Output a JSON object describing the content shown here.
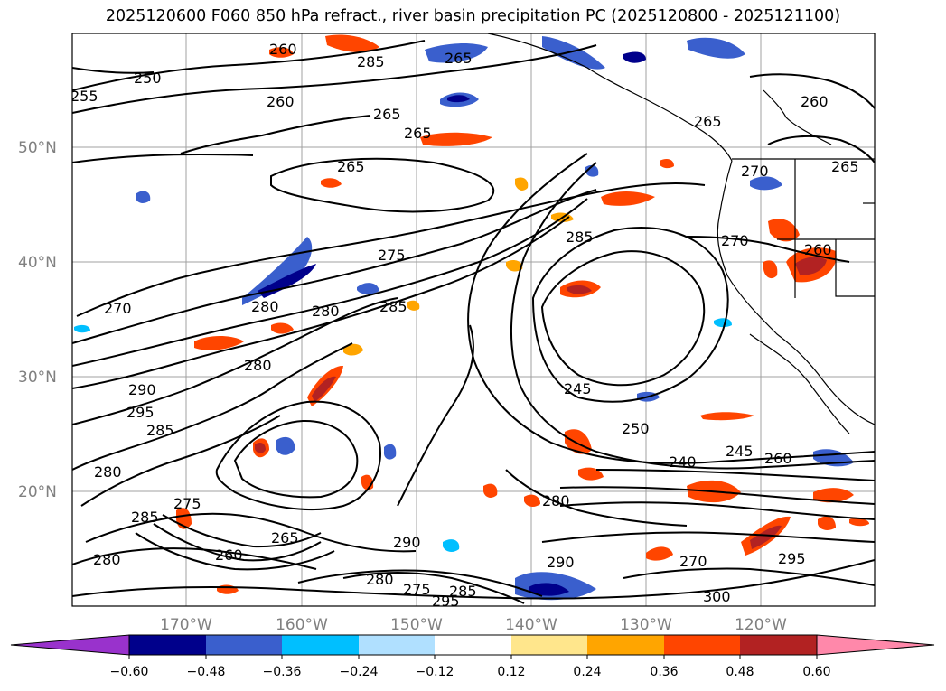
{
  "title": "2025120600 F060 850 hPa refract., river basin precipitation PC (2025120800 - 2025121100)",
  "map": {
    "lat_labels": [
      "50°N",
      "40°N",
      "30°N",
      "20°N"
    ],
    "lon_labels": [
      "170°W",
      "160°W",
      "150°W",
      "140°W",
      "130°W",
      "120°W"
    ],
    "gridline_color": "#a0a0a0",
    "contour_color": "#000000",
    "contour_labels": [
      "250",
      "255",
      "260",
      "265",
      "265",
      "265",
      "260",
      "265",
      "260",
      "270",
      "280",
      "280",
      "275",
      "285",
      "280",
      "285",
      "290",
      "295",
      "285",
      "280",
      "285",
      "275",
      "280",
      "260",
      "265",
      "290",
      "280",
      "275",
      "295",
      "285",
      "290",
      "300",
      "295",
      "270",
      "245",
      "250",
      "240",
      "245",
      "260",
      "280",
      "270",
      "265",
      "285",
      "265",
      "260",
      "270"
    ]
  },
  "colorbar": {
    "ticks": [
      "−0.60",
      "−0.48",
      "−0.36",
      "−0.24",
      "−0.12",
      "0.12",
      "0.24",
      "0.36",
      "0.48",
      "0.60"
    ],
    "colors": [
      "#9932cc",
      "#00008b",
      "#3a5fcd",
      "#00bfff",
      "#b0e0ff",
      "#ffffff",
      "#ffe68c",
      "#ffa500",
      "#ff4500",
      "#b22222",
      "#ff88aa"
    ]
  }
}
